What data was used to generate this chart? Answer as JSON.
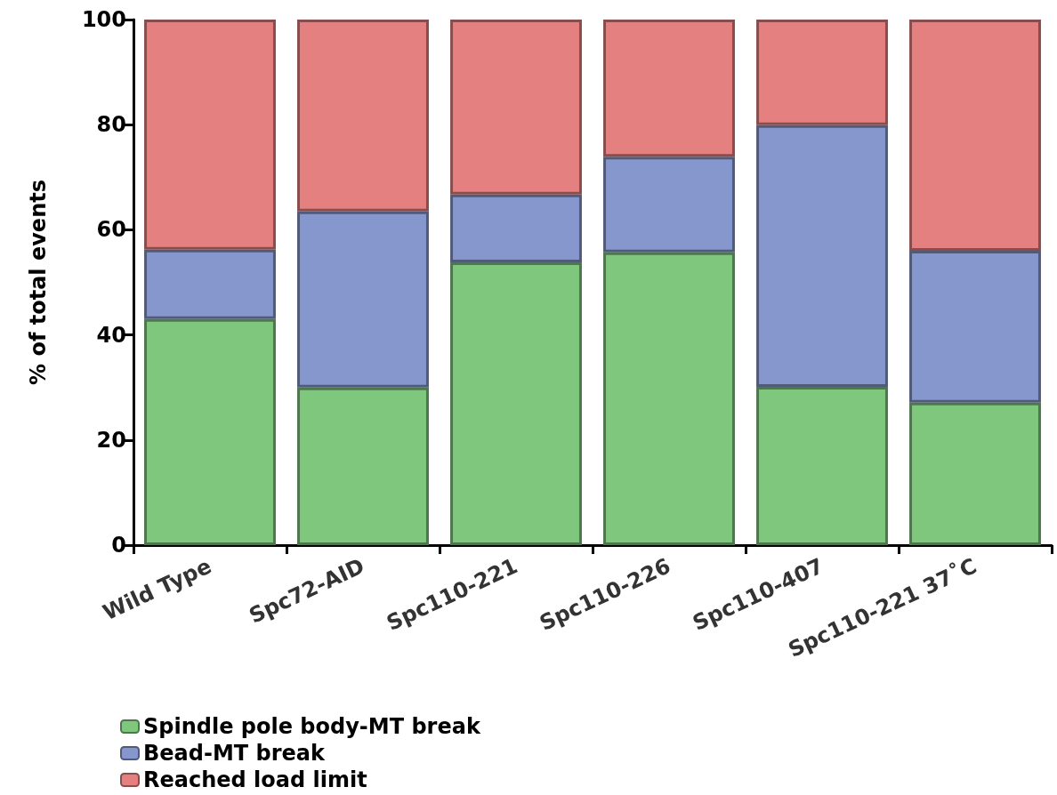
{
  "chart_data": {
    "type": "bar",
    "stacked": true,
    "ylabel": "% of total events",
    "categories": [
      "Wild Type",
      "Spc72-AID",
      "Spc110-221",
      "Spc110-226",
      "Spc110-407",
      "Spc110-221 37˚C"
    ],
    "series": [
      {
        "name": "Spindle pole body-MT break",
        "color": "#80c77e",
        "values": [
          43.0,
          30.0,
          53.8,
          55.7,
          30.1,
          27.1
        ]
      },
      {
        "name": "Bead-MT break",
        "color": "#8597cc",
        "values": [
          13.2,
          33.5,
          12.9,
          18.2,
          49.8,
          28.9
        ]
      },
      {
        "name": "Reached load limit",
        "color": "#e58080",
        "values": [
          43.8,
          36.5,
          33.3,
          26.1,
          20.1,
          44.0
        ]
      }
    ],
    "ylim": [
      0,
      100
    ],
    "yticks": [
      0,
      20,
      40,
      60,
      80,
      100
    ],
    "grid": false,
    "legend": "bottom left"
  }
}
